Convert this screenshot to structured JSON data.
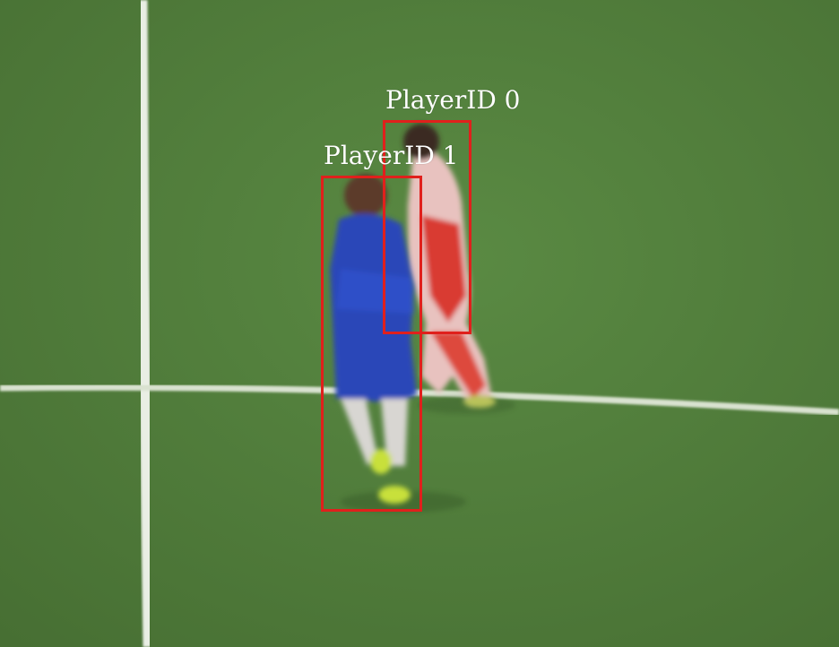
{
  "detections": [
    {
      "label": "PlayerID 0",
      "box_color": "#e0201c"
    },
    {
      "label": "PlayerID 1",
      "box_color": "#e0201c"
    }
  ]
}
